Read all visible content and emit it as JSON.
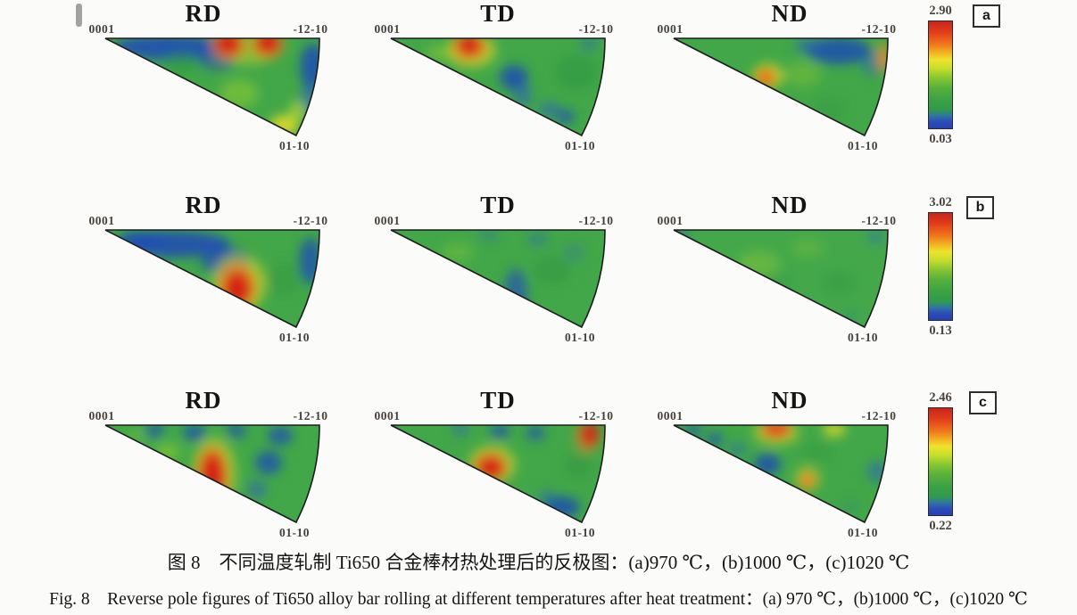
{
  "figure_caption": {
    "chinese": "图 8　不同温度轧制 Ti650 合金棒材热处理后的反极图：(a)970 ℃，(b)1000 ℃，(c)1020 ℃",
    "english": "Fig. 8　Reverse pole figures of Ti650 alloy bar rolling at different temperatures after heat treatment：(a) 970 ℃，(b)1000 ℃，(c)1020 ℃"
  },
  "chart_data": {
    "type": "heatmap",
    "subtype": "inverse_pole_figure_contour",
    "description": "3x3 grid of inverse pole figures of Ti650 alloy bar; columns = sample directions RD/TD/ND, rows a/b/c = rolling temperatures 970/1000/1020 C after heat treatment; each row has its own intensity color scale (blue=min, red=max).",
    "columns": [
      "RD",
      "TD",
      "ND"
    ],
    "corner_labels": {
      "apex": "0001",
      "top_right": "-12-10",
      "bottom": "01-10"
    },
    "colormap_stops": [
      {
        "pos": 0.0,
        "color": "#c8251c"
      },
      {
        "pos": 0.1,
        "color": "#e23c1a"
      },
      {
        "pos": 0.22,
        "color": "#ef7a1d"
      },
      {
        "pos": 0.3,
        "color": "#f2b824"
      },
      {
        "pos": 0.36,
        "color": "#eee32a"
      },
      {
        "pos": 0.44,
        "color": "#c6de2c"
      },
      {
        "pos": 0.52,
        "color": "#8cc832"
      },
      {
        "pos": 0.62,
        "color": "#57b13a"
      },
      {
        "pos": 0.74,
        "color": "#3aa244"
      },
      {
        "pos": 0.83,
        "color": "#2f9a4c"
      },
      {
        "pos": 0.88,
        "color": "#2f77a0"
      },
      {
        "pos": 0.94,
        "color": "#2b4cbb"
      },
      {
        "pos": 1.0,
        "color": "#2741b2"
      }
    ],
    "rows": [
      {
        "label": "a",
        "temperature": "970 ℃",
        "scale_max": "2.90",
        "scale_min": "0.03",
        "panels": {
          "RD": {
            "base": "#42a748",
            "blobs": [
              [
                70,
                10,
                62,
                14,
                "#1d49b8",
                0.85
              ],
              [
                125,
                22,
                22,
                14,
                "#1d49b8",
                0.55
              ],
              [
                160,
                12,
                34,
                18,
                "#e8dc28",
                0.4
              ],
              [
                138,
                8,
                20,
                17,
                "#f07f1d",
                0.7
              ],
              [
                182,
                7,
                19,
                16,
                "#f07f1d",
                0.7
              ],
              [
                138,
                6,
                14,
                12,
                "#d42414",
                1
              ],
              [
                182,
                5,
                13,
                12,
                "#d42414",
                1
              ],
              [
                233,
                32,
                15,
                26,
                "#1d49b8",
                0.8
              ],
              [
                230,
                68,
                12,
                18,
                "#2b62b8",
                0.6
              ],
              [
                150,
                62,
                22,
                16,
                "#a2d22e",
                0.45
              ],
              [
                85,
                28,
                20,
                12,
                "#2e9340",
                0.5
              ],
              [
                215,
                82,
                9,
                12,
                "#cfe02c",
                0.6
              ],
              [
                200,
                98,
                16,
                12,
                "#e8dc28",
                0.85
              ]
            ]
          },
          "TD": {
            "base": "#42a748",
            "blobs": [
              [
                90,
                14,
                28,
                19,
                "#e8dc28",
                0.6
              ],
              [
                88,
                10,
                20,
                15,
                "#f07f1d",
                0.8
              ],
              [
                88,
                8,
                13,
                11,
                "#d42414",
                1
              ],
              [
                138,
                44,
                16,
                14,
                "#1d49b8",
                0.8
              ],
              [
                148,
                64,
                11,
                12,
                "#2b62b8",
                0.6
              ],
              [
                178,
                80,
                12,
                9,
                "#2b62b8",
                0.6
              ],
              [
                196,
                88,
                10,
                8,
                "#1d49b8",
                0.7
              ],
              [
                208,
                38,
                24,
                20,
                "#2e9340",
                0.5
              ],
              [
                55,
                16,
                16,
                9,
                "#a2d22e",
                0.4
              ],
              [
                222,
                6,
                10,
                8,
                "#2b62b8",
                0.5
              ]
            ]
          },
          "ND": {
            "base": "#42a748",
            "blobs": [
              [
                185,
                14,
                36,
                15,
                "#1d49b8",
                0.8
              ],
              [
                150,
                8,
                14,
                9,
                "#2b62b8",
                0.6
              ],
              [
                222,
                28,
                12,
                14,
                "#2b62b8",
                0.5
              ],
              [
                106,
                42,
                18,
                14,
                "#e8dc28",
                0.65
              ],
              [
                103,
                44,
                11,
                10,
                "#f07018",
                0.95
              ],
              [
                235,
                22,
                7,
                16,
                "#f08a1a",
                0.85
              ],
              [
                145,
                40,
                20,
                14,
                "#8cc832",
                0.4
              ],
              [
                175,
                80,
                18,
                12,
                "#2e9340",
                0.4
              ]
            ]
          }
        }
      },
      {
        "label": "b",
        "temperature": "1000 ℃",
        "scale_max": "3.02",
        "scale_min": "0.13",
        "panels": {
          "RD": {
            "base": "#42a748",
            "blobs": [
              [
                40,
                10,
                25,
                9,
                "#1d49b8",
                0.7
              ],
              [
                75,
                16,
                65,
                15,
                "#1d49b8",
                0.85
              ],
              [
                135,
                35,
                28,
                16,
                "#1d49b8",
                0.7
              ],
              [
                230,
                35,
                13,
                26,
                "#1d49b8",
                0.75
              ],
              [
                150,
                60,
                30,
                33,
                "#e8dc28",
                0.55
              ],
              [
                148,
                64,
                22,
                26,
                "#f07f1d",
                0.75
              ],
              [
                148,
                66,
                15,
                19,
                "#d42414",
                1
              ],
              [
                200,
                55,
                20,
                18,
                "#2e9340",
                0.4
              ]
            ]
          },
          "TD": {
            "base": "#42a748",
            "blobs": [
              [
                110,
                6,
                12,
                7,
                "#2b62b8",
                0.35
              ],
              [
                165,
                10,
                13,
                8,
                "#2b62b8",
                0.4
              ],
              [
                205,
                25,
                12,
                10,
                "#2b62b8",
                0.3
              ],
              [
                140,
                70,
                13,
                26,
                "#2553b5",
                0.7
              ],
              [
                148,
                92,
                10,
                10,
                "#2553b5",
                0.5
              ],
              [
                75,
                25,
                18,
                11,
                "#8cc832",
                0.35
              ],
              [
                180,
                45,
                22,
                16,
                "#2e9340",
                0.45
              ]
            ]
          },
          "ND": {
            "base": "#44a84b",
            "blobs": [
              [
                95,
                38,
                24,
                14,
                "#8cc832",
                0.45
              ],
              [
                150,
                20,
                18,
                10,
                "#8cc832",
                0.3
              ],
              [
                8,
                3,
                7,
                5,
                "#1d49b8",
                0.7
              ],
              [
                226,
                8,
                9,
                7,
                "#2b62b8",
                0.5
              ],
              [
                185,
                60,
                20,
                14,
                "#2e9340",
                0.4
              ],
              [
                120,
                60,
                16,
                10,
                "#2e9340",
                0.3
              ],
              [
                198,
                98,
                10,
                8,
                "#2b7f8a",
                0.35
              ]
            ]
          }
        }
      },
      {
        "label": "c",
        "temperature": "1020 ℃",
        "scale_max": "2.46",
        "scale_min": "0.22",
        "panels": {
          "RD": {
            "base": "#42a748",
            "blobs": [
              [
                55,
                6,
                11,
                8,
                "#1d49b8",
                0.7
              ],
              [
                100,
                8,
                13,
                9,
                "#1d49b8",
                0.75
              ],
              [
                147,
                6,
                11,
                8,
                "#1d49b8",
                0.7
              ],
              [
                196,
                12,
                14,
                10,
                "#1d49b8",
                0.75
              ],
              [
                183,
                42,
                15,
                13,
                "#1d49b8",
                0.75
              ],
              [
                170,
                72,
                11,
                10,
                "#2b62b8",
                0.6
              ],
              [
                122,
                54,
                25,
                40,
                "#e8dc28",
                0.5
              ],
              [
                120,
                56,
                19,
                34,
                "#f07f1d",
                0.7
              ],
              [
                120,
                58,
                13,
                27,
                "#d42414",
                1
              ],
              [
                70,
                30,
                14,
                9,
                "#a2d22e",
                0.5
              ],
              [
                35,
                12,
                10,
                6,
                "#8cc832",
                0.4
              ]
            ]
          },
          "TD": {
            "base": "#42a748",
            "blobs": [
              [
                114,
                44,
                27,
                22,
                "#e8dc28",
                0.5
              ],
              [
                112,
                46,
                20,
                17,
                "#f07f1d",
                0.75
              ],
              [
                112,
                48,
                14,
                12,
                "#d42414",
                1
              ],
              [
                220,
                14,
                14,
                17,
                "#f07f1d",
                0.6
              ],
              [
                223,
                10,
                10,
                13,
                "#d42414",
                0.95
              ],
              [
                78,
                5,
                9,
                7,
                "#2b62b8",
                0.6
              ],
              [
                122,
                7,
                11,
                8,
                "#1d49b8",
                0.7
              ],
              [
                162,
                9,
                11,
                8,
                "#1d49b8",
                0.65
              ],
              [
                192,
                92,
                20,
                12,
                "#1d49b8",
                0.8
              ],
              [
                175,
                80,
                10,
                8,
                "#2b62b8",
                0.5
              ],
              [
                210,
                45,
                16,
                14,
                "#2e9340",
                0.45
              ]
            ]
          },
          "ND": {
            "base": "#42a748",
            "blobs": [
              [
                115,
                8,
                25,
                14,
                "#e8dc28",
                0.6
              ],
              [
                115,
                5,
                17,
                10,
                "#e8481a",
                0.9
              ],
              [
                180,
                5,
                13,
                8,
                "#e8dc28",
                0.75
              ],
              [
                22,
                6,
                9,
                6,
                "#1d49b8",
                0.75
              ],
              [
                46,
                16,
                10,
                7,
                "#1d49b8",
                0.7
              ],
              [
                72,
                27,
                10,
                7,
                "#2b62b8",
                0.55
              ],
              [
                105,
                44,
                15,
                12,
                "#1d49b8",
                0.8
              ],
              [
                150,
                60,
                14,
                14,
                "#e8dc28",
                0.5
              ],
              [
                150,
                62,
                9,
                10,
                "#f07f1d",
                0.85
              ],
              [
                228,
                52,
                11,
                12,
                "#2b62b8",
                0.6
              ],
              [
                198,
                92,
                9,
                7,
                "#2b7f8a",
                0.35
              ],
              [
                160,
                30,
                18,
                10,
                "#2e9340",
                0.35
              ]
            ]
          }
        }
      }
    ]
  }
}
